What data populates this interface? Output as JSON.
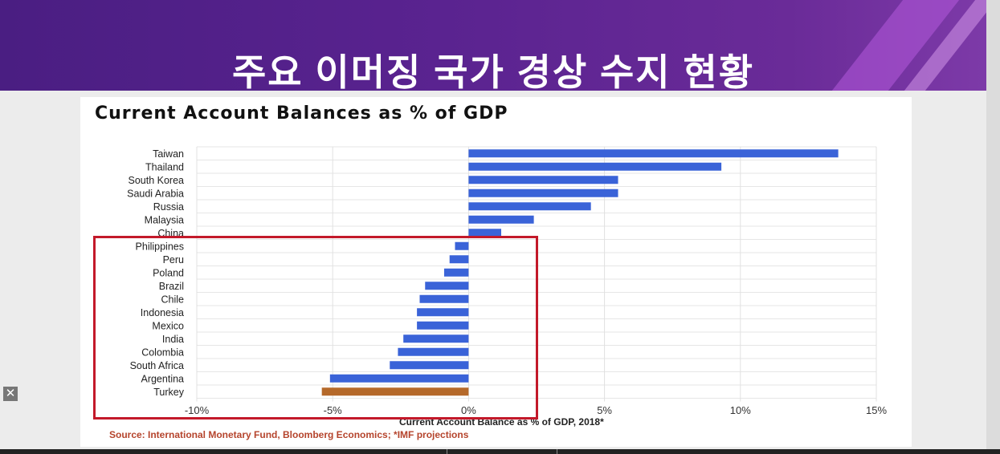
{
  "slide": {
    "title": "주요 이머징 국가 경상 수지 현황"
  },
  "chart_data": {
    "type": "bar",
    "orientation": "horizontal",
    "title": "Current Account Balances as % of GDP",
    "xlabel": "Current Account Balance as % of GDP, 2018*",
    "source": "Source: International Monetary Fund, Bloomberg Economics; *IMF projections",
    "xlim": [
      -10,
      15
    ],
    "xticks": [
      "-10%",
      "-5%",
      "0%",
      "5%",
      "10%",
      "15%"
    ],
    "grid": true,
    "categories": [
      "Taiwan",
      "Thailand",
      "South Korea",
      "Saudi Arabia",
      "Russia",
      "Malaysia",
      "China",
      "Philippines",
      "Peru",
      "Poland",
      "Brazil",
      "Chile",
      "Indonesia",
      "Mexico",
      "India",
      "Colombia",
      "South Africa",
      "Argentina",
      "Turkey"
    ],
    "values": [
      13.6,
      9.3,
      5.5,
      5.5,
      4.5,
      2.4,
      1.2,
      -0.5,
      -0.7,
      -0.9,
      -1.6,
      -1.8,
      -1.9,
      -1.9,
      -2.4,
      -2.6,
      -2.9,
      -5.1,
      -5.4
    ],
    "colors": {
      "default": "#3a63d8",
      "highlight": "#b5692a",
      "highlighted_category": "Turkey",
      "annotation_box": "#c3192a"
    }
  },
  "controls": {
    "close_icon": "close-icon"
  }
}
